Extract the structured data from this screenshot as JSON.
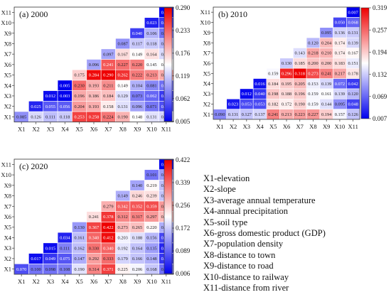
{
  "chart_data": [
    {
      "type": "heatmap",
      "title": "(a) 2000",
      "labels": [
        "X1",
        "X2",
        "X3",
        "X4",
        "X5",
        "X6",
        "X7",
        "X8",
        "X9",
        "X10",
        "X11"
      ],
      "colorbar_ticks": [
        "0.290",
        "0.233",
        "0.176",
        "0.119",
        "0.062",
        "0.005"
      ],
      "vmin": 0.005,
      "vmax": 0.29,
      "rows": [
        [
          0.085,
          0.126,
          0.111,
          0.118,
          0.253,
          0.258,
          0.224,
          0.19,
          0.148,
          0.131,
          0.123
        ],
        [
          null,
          0.025,
          0.055,
          0.056,
          0.204,
          0.193,
          0.158,
          0.131,
          0.096,
          0.071,
          0.049
        ],
        [
          null,
          null,
          0.012,
          0.003,
          0.196,
          0.186,
          0.184,
          0.129,
          0.073,
          0.062,
          0.037
        ],
        [
          null,
          null,
          null,
          0.005,
          0.23,
          0.193,
          0.211,
          0.149,
          0.104,
          0.081,
          0.067
        ],
        [
          null,
          null,
          null,
          null,
          0.175,
          0.284,
          0.29,
          0.262,
          0.222,
          0.213,
          0.195
        ],
        [
          null,
          null,
          null,
          null,
          null,
          0.096,
          0.241,
          0.227,
          0.22,
          0.145,
          0.147
        ],
        [
          null,
          null,
          null,
          null,
          null,
          null,
          0.097,
          0.167,
          0.149,
          0.164,
          0.127
        ],
        [
          null,
          null,
          null,
          null,
          null,
          null,
          null,
          0.087,
          0.117,
          0.118,
          0.106
        ],
        [
          null,
          null,
          null,
          null,
          null,
          null,
          null,
          null,
          0.04,
          0.106,
          0.069
        ],
        [
          null,
          null,
          null,
          null,
          null,
          null,
          null,
          null,
          null,
          0.023,
          0.037
        ],
        [
          null,
          null,
          null,
          null,
          null,
          null,
          null,
          null,
          null,
          null,
          0.006
        ]
      ]
    },
    {
      "type": "heatmap",
      "title": "(b) 2010",
      "labels": [
        "X1",
        "X2",
        "X3",
        "X4",
        "X5",
        "X6",
        "X7",
        "X8",
        "X9",
        "X10",
        "X11"
      ],
      "colorbar_ticks": [
        "0.319",
        "0.257",
        "0.194",
        "0.132",
        "0.069",
        "0.007"
      ],
      "vmin": 0.007,
      "vmax": 0.319,
      "rows": [
        [
          0.09,
          0.131,
          0.127,
          0.137,
          0.241,
          0.213,
          0.223,
          0.227,
          0.194,
          0.157,
          0.126
        ],
        [
          null,
          0.023,
          0.053,
          0.053,
          0.182,
          0.172,
          0.19,
          0.159,
          0.144,
          0.095,
          0.048
        ],
        [
          null,
          null,
          0.012,
          0.04,
          0.198,
          0.188,
          0.196,
          0.159,
          0.161,
          0.139,
          0.12
        ],
        [
          null,
          null,
          null,
          0.016,
          0.184,
          0.195,
          0.205,
          0.153,
          0.139,
          0.072,
          0.042
        ],
        [
          null,
          null,
          null,
          null,
          0.159,
          0.296,
          0.318,
          0.273,
          0.241,
          0.217,
          0.178
        ],
        [
          null,
          null,
          null,
          null,
          null,
          0.13,
          0.185,
          0.2,
          0.2,
          0.183,
          0.151
        ],
        [
          null,
          null,
          null,
          null,
          null,
          null,
          0.143,
          0.218,
          0.21,
          0.174,
          0.167
        ],
        [
          null,
          null,
          null,
          null,
          null,
          null,
          null,
          0.12,
          0.204,
          0.174,
          0.139
        ],
        [
          null,
          null,
          null,
          null,
          null,
          null,
          null,
          null,
          0.095,
          0.136,
          0.131
        ],
        [
          null,
          null,
          null,
          null,
          null,
          null,
          null,
          null,
          null,
          0.05,
          0.068
        ],
        [
          null,
          null,
          null,
          null,
          null,
          null,
          null,
          null,
          null,
          null,
          0.007
        ]
      ]
    },
    {
      "type": "heatmap",
      "title": "(c) 2020",
      "labels": [
        "X1",
        "X2",
        "X3",
        "X4",
        "X5",
        "X6",
        "X7",
        "X8",
        "X9",
        "X10",
        "X11"
      ],
      "colorbar_ticks": [
        "0.422",
        "0.339",
        "0.256",
        "0.172",
        "0.089",
        "0.006"
      ],
      "vmin": 0.006,
      "vmax": 0.422,
      "rows": [
        [
          0.07,
          0.1,
          0.098,
          0.108,
          0.19,
          0.314,
          0.371,
          0.225,
          0.206,
          0.168,
          0.098
        ],
        [
          null,
          0.017,
          0.049,
          0.075,
          0.147,
          0.292,
          0.333,
          0.179,
          0.166,
          0.148,
          0.049
        ],
        [
          null,
          null,
          0.015,
          0.111,
          0.162,
          0.33,
          0.34,
          0.192,
          0.164,
          0.135,
          0.036
        ],
        [
          null,
          null,
          null,
          0.034,
          0.161,
          0.34,
          0.412,
          0.203,
          0.188,
          0.156,
          0.063
        ],
        [
          null,
          null,
          null,
          null,
          0.13,
          0.367,
          0.422,
          0.273,
          0.265,
          0.22,
          0.148
        ],
        [
          null,
          null,
          null,
          null,
          null,
          0.241,
          0.378,
          0.312,
          0.317,
          0.297,
          0.269
        ],
        [
          null,
          null,
          null,
          null,
          null,
          null,
          0.279,
          0.342,
          0.352,
          0.359,
          0.298
        ],
        [
          null,
          null,
          null,
          null,
          null,
          null,
          null,
          0.149,
          0.246,
          0.239,
          0.166
        ],
        [
          null,
          null,
          null,
          null,
          null,
          null,
          null,
          null,
          0.14,
          0.219,
          0.162
        ],
        [
          null,
          null,
          null,
          null,
          null,
          null,
          null,
          null,
          null,
          0.101,
          0.132
        ],
        [
          null,
          null,
          null,
          null,
          null,
          null,
          null,
          null,
          null,
          null,
          0.007
        ]
      ]
    }
  ],
  "legend": [
    "X1-elevation",
    "X2-slope",
    "X3-average annual temperature",
    "X4-annual precipitation",
    "X5-soil type",
    "X6-gross domestic product (GDP)",
    "X7-population density",
    "X8-distance to town",
    "X9-distance to road",
    "X10-distance to railway",
    "X11-distance from river"
  ],
  "colors": {
    "low": "#0000ee",
    "mid": "#ffffff",
    "high": "#ee0000"
  }
}
